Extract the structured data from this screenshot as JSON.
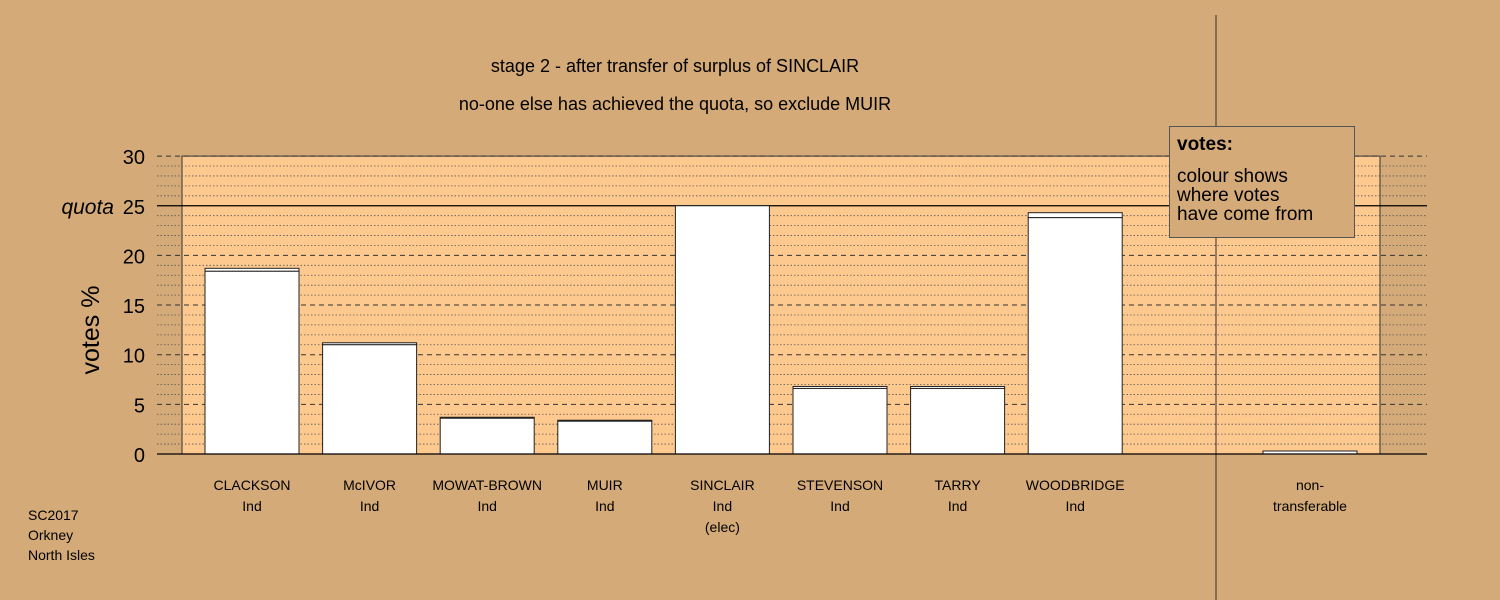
{
  "chart_data": {
    "type": "bar",
    "title": "stage 2 - after transfer of surplus of SINCLAIR",
    "subtitle": "no-one else has achieved the quota, so exclude MUIR",
    "ylabel": "votes %",
    "ylim": [
      0,
      30
    ],
    "yticks": [
      "0",
      "5",
      "10",
      "15",
      "20",
      "25",
      "30"
    ],
    "quota": {
      "value": 25,
      "label": "quota"
    },
    "categories": [
      {
        "name": "CLACKSON",
        "lines": [
          "CLACKSON",
          "Ind"
        ]
      },
      {
        "name": "McIVOR",
        "lines": [
          "McIVOR",
          "Ind"
        ]
      },
      {
        "name": "MOWAT-BROWN",
        "lines": [
          "MOWAT-BROWN",
          "Ind"
        ]
      },
      {
        "name": "MUIR",
        "lines": [
          "MUIR",
          "Ind"
        ]
      },
      {
        "name": "SINCLAIR",
        "lines": [
          "SINCLAIR",
          "Ind",
          "(elec)"
        ]
      },
      {
        "name": "STEVENSON",
        "lines": [
          "STEVENSON",
          "Ind"
        ]
      },
      {
        "name": "TARRY",
        "lines": [
          "TARRY",
          "Ind"
        ]
      },
      {
        "name": "WOODBRIDGE",
        "lines": [
          "WOODBRIDGE",
          "Ind"
        ]
      }
    ],
    "series": [
      {
        "values": [
          18.4,
          11.0,
          3.6,
          3.3,
          25.0,
          6.6,
          6.6,
          23.8
        ]
      },
      {
        "values": [
          0.3,
          0.2,
          0.1,
          0.1,
          0.0,
          0.2,
          0.2,
          0.5
        ]
      }
    ],
    "nontransferable": {
      "lines": [
        "non-",
        "transferable"
      ],
      "value": 0.3
    },
    "grid": true
  },
  "legend": {
    "title": "votes:",
    "lines": [
      "colour shows",
      "where votes",
      "have come from"
    ]
  },
  "footer": {
    "lines": [
      "SC2017",
      "Orkney",
      "North Isles"
    ]
  }
}
